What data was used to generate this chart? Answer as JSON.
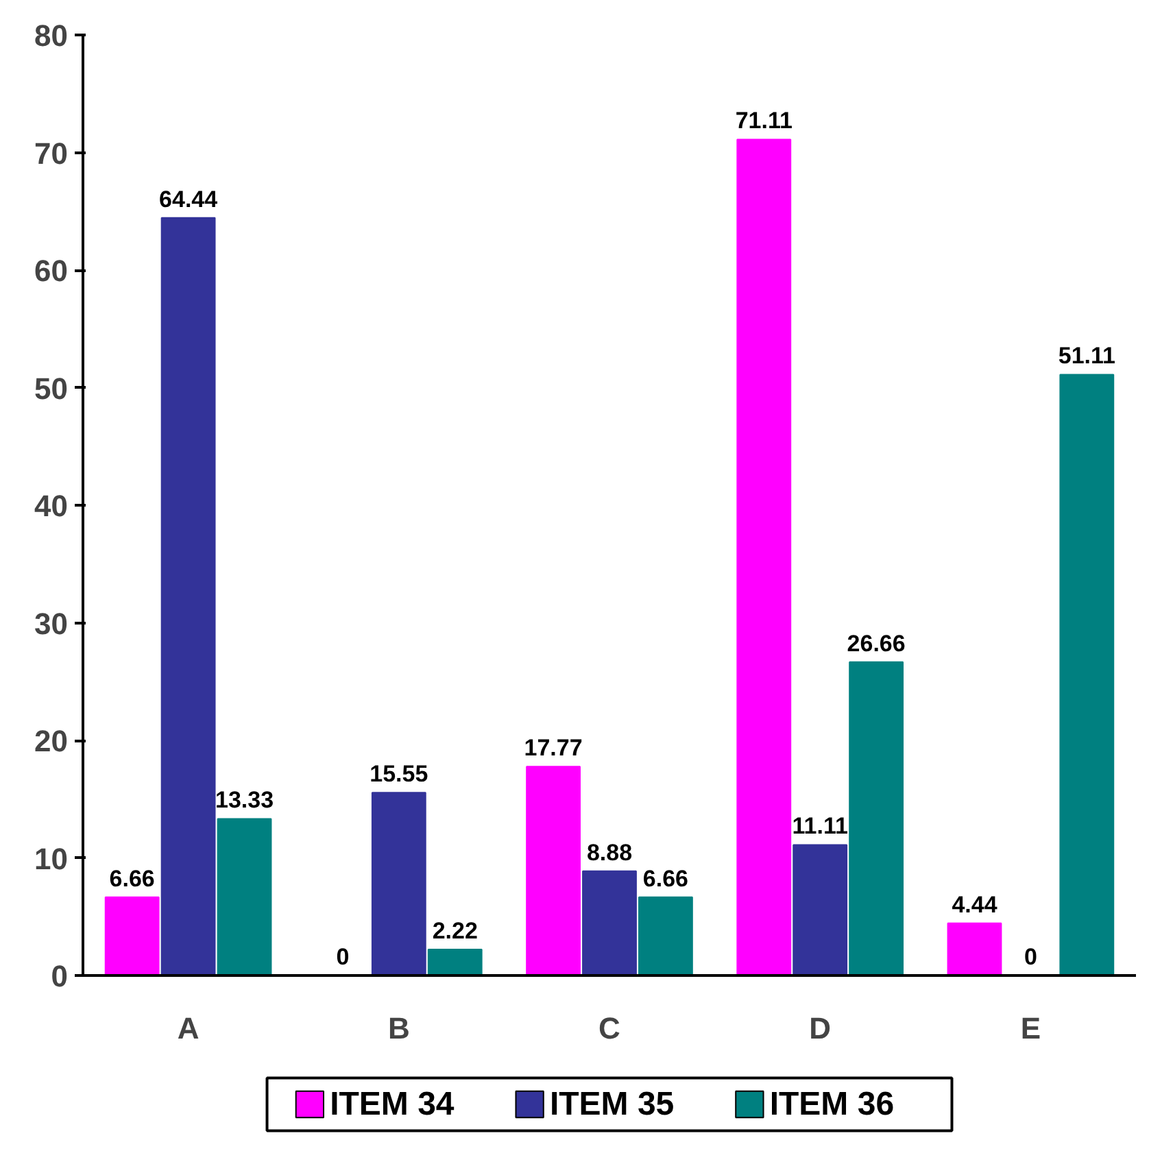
{
  "chart_data": {
    "type": "bar",
    "categories": [
      "A",
      "B",
      "C",
      "D",
      "E"
    ],
    "series": [
      {
        "name": "ITEM  34",
        "color": "#ff00ff",
        "values": [
          6.66,
          0,
          17.77,
          71.11,
          4.44
        ]
      },
      {
        "name": "ITEM  35",
        "color": "#333399",
        "values": [
          64.44,
          15.55,
          8.88,
          11.11,
          0
        ]
      },
      {
        "name": "ITEM  36",
        "color": "#008080",
        "values": [
          13.33,
          2.22,
          6.66,
          26.66,
          51.11
        ]
      }
    ],
    "ylim": [
      0,
      80
    ],
    "yticks": [
      0,
      10,
      20,
      30,
      40,
      50,
      60,
      70,
      80
    ],
    "grid": false,
    "legend": "bottom",
    "data_labels": true
  }
}
